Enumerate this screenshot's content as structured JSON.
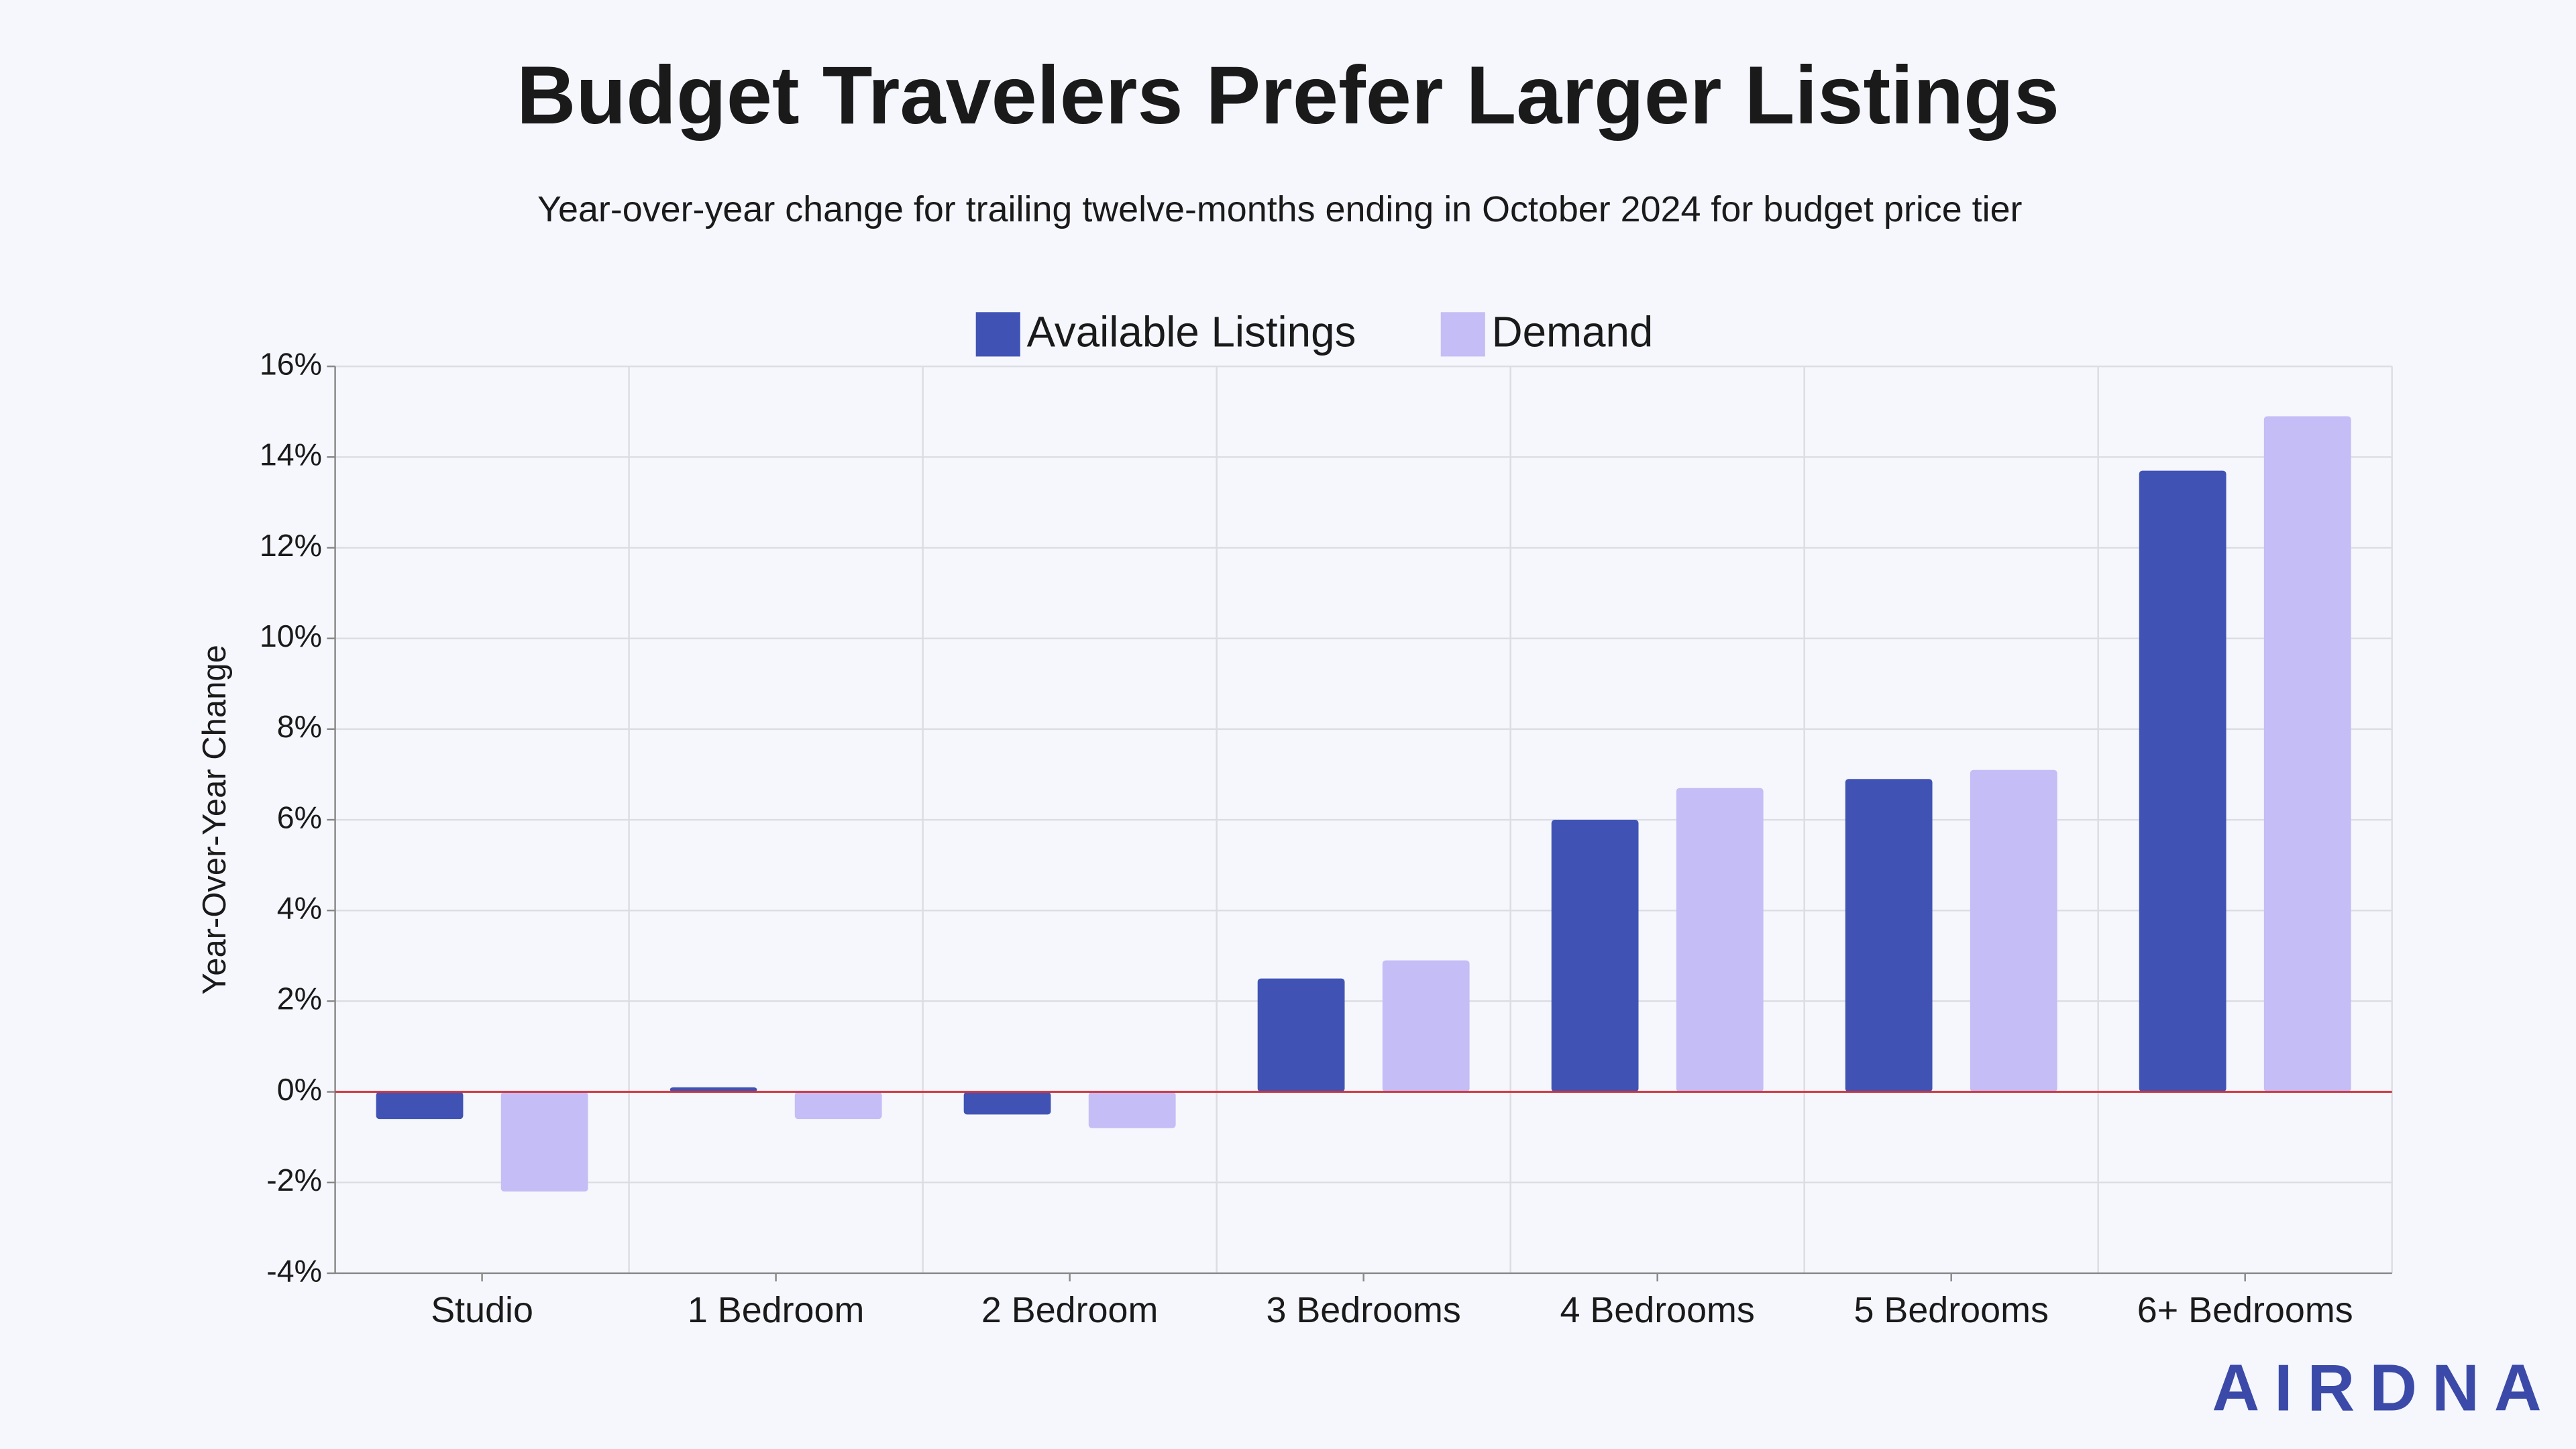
{
  "chart_data": {
    "type": "bar",
    "title": "Budget Travelers Prefer Larger Listings",
    "subtitle": "Year-over-year change for trailing twelve-months ending in October 2024 for budget price tier",
    "y_label": "Year-Over-Year Change",
    "categories": [
      "Studio",
      "1 Bedroom",
      "2 Bedroom",
      "3 Bedrooms",
      "4 Bedrooms",
      "5 Bedrooms",
      "6+ Bedrooms"
    ],
    "series": [
      {
        "name": "Available Listings",
        "color": "#4053b5",
        "values": [
          -0.6,
          0.1,
          -0.5,
          2.5,
          6.0,
          6.9,
          13.7
        ]
      },
      {
        "name": "Demand",
        "color": "#c4bdf6",
        "values": [
          -2.2,
          -0.6,
          -0.8,
          2.9,
          6.7,
          7.1,
          14.9
        ]
      }
    ],
    "ylim": [
      -4,
      16
    ],
    "yticks": [
      {
        "value": -4,
        "label": "-4%"
      },
      {
        "value": -2,
        "label": "-2%"
      },
      {
        "value": 0,
        "label": "0%"
      },
      {
        "value": 2,
        "label": "2%"
      },
      {
        "value": 4,
        "label": "4%"
      },
      {
        "value": 6,
        "label": "6%"
      },
      {
        "value": 8,
        "label": "8%"
      },
      {
        "value": 10,
        "label": "10%"
      },
      {
        "value": 12,
        "label": "12%"
      },
      {
        "value": 14,
        "label": "14%"
      },
      {
        "value": 16,
        "label": "16%"
      }
    ],
    "grid": true,
    "legend": "top",
    "zero_line_color": "#d0323c",
    "brand": "AIRDNA"
  }
}
